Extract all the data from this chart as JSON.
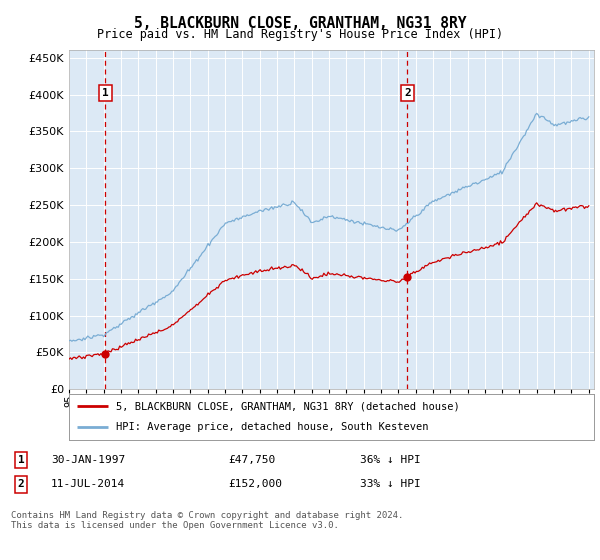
{
  "title": "5, BLACKBURN CLOSE, GRANTHAM, NG31 8RY",
  "subtitle": "Price paid vs. HM Land Registry's House Price Index (HPI)",
  "legend_label_red": "5, BLACKBURN CLOSE, GRANTHAM, NG31 8RY (detached house)",
  "legend_label_blue": "HPI: Average price, detached house, South Kesteven",
  "annotation1_date": "30-JAN-1997",
  "annotation1_price": "£47,750",
  "annotation1_hpi": "36% ↓ HPI",
  "annotation2_date": "11-JUL-2014",
  "annotation2_price": "£152,000",
  "annotation2_hpi": "33% ↓ HPI",
  "footer": "Contains HM Land Registry data © Crown copyright and database right 2024.\nThis data is licensed under the Open Government Licence v3.0.",
  "ylim": [
    0,
    460000
  ],
  "yticks": [
    0,
    50000,
    100000,
    150000,
    200000,
    250000,
    300000,
    350000,
    400000,
    450000
  ],
  "sale1_year": 1997.08,
  "sale1_price": 47750,
  "sale2_year": 2014.53,
  "sale2_price": 152000,
  "plot_bg": "#dce9f5",
  "grid_color": "#ffffff",
  "red_color": "#cc0000",
  "blue_color": "#7aadd4"
}
